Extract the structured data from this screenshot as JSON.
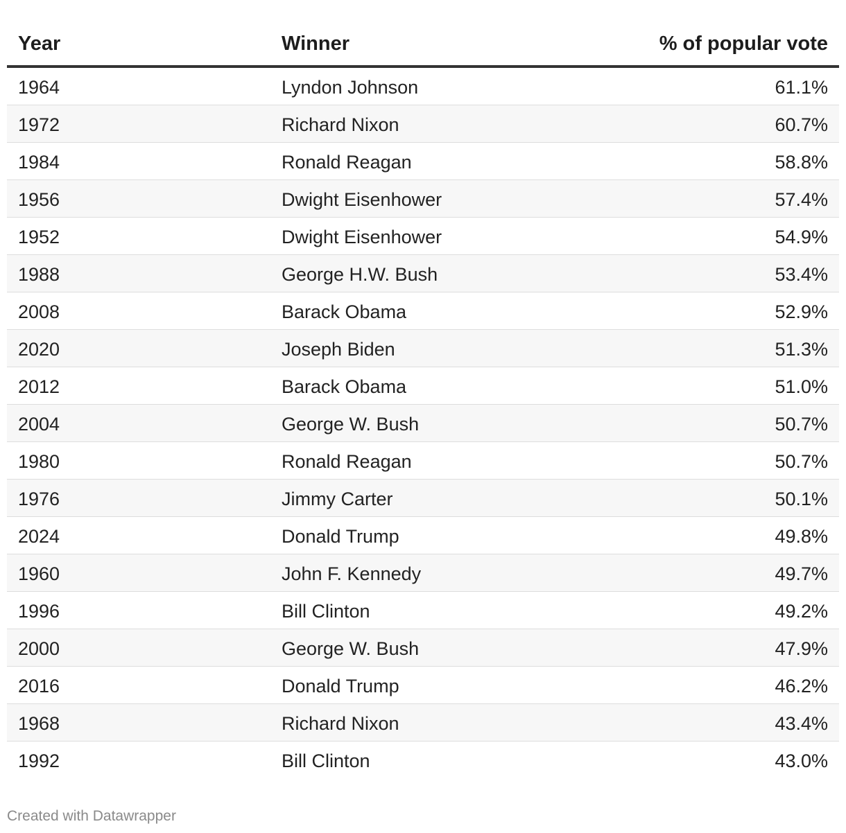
{
  "chart_data": {
    "type": "table",
    "columns": [
      "Year",
      "Winner",
      "% of popular vote"
    ],
    "rows": [
      {
        "year": "1964",
        "winner": "Lyndon Johnson",
        "pct": "61.1%"
      },
      {
        "year": "1972",
        "winner": "Richard Nixon",
        "pct": "60.7%"
      },
      {
        "year": "1984",
        "winner": "Ronald Reagan",
        "pct": "58.8%"
      },
      {
        "year": "1956",
        "winner": "Dwight Eisenhower",
        "pct": "57.4%"
      },
      {
        "year": "1952",
        "winner": "Dwight Eisenhower",
        "pct": "54.9%"
      },
      {
        "year": "1988",
        "winner": "George H.W. Bush",
        "pct": "53.4%"
      },
      {
        "year": "2008",
        "winner": "Barack Obama",
        "pct": "52.9%"
      },
      {
        "year": "2020",
        "winner": "Joseph Biden",
        "pct": "51.3%"
      },
      {
        "year": "2012",
        "winner": "Barack Obama",
        "pct": "51.0%"
      },
      {
        "year": "2004",
        "winner": "George W. Bush",
        "pct": "50.7%"
      },
      {
        "year": "1980",
        "winner": "Ronald Reagan",
        "pct": "50.7%"
      },
      {
        "year": "1976",
        "winner": "Jimmy Carter",
        "pct": "50.1%"
      },
      {
        "year": "2024",
        "winner": "Donald Trump",
        "pct": "49.8%"
      },
      {
        "year": "1960",
        "winner": "John F. Kennedy",
        "pct": "49.7%"
      },
      {
        "year": "1996",
        "winner": "Bill Clinton",
        "pct": "49.2%"
      },
      {
        "year": "2000",
        "winner": "George W. Bush",
        "pct": "47.9%"
      },
      {
        "year": "2016",
        "winner": "Donald Trump",
        "pct": "46.2%"
      },
      {
        "year": "1968",
        "winner": "Richard Nixon",
        "pct": "43.4%"
      },
      {
        "year": "1992",
        "winner": "Bill Clinton",
        "pct": "43.0%"
      }
    ]
  },
  "footer": {
    "credit": "Created with Datawrapper"
  },
  "colors": {
    "header_rule": "#333333",
    "row_divider": "#dddddd",
    "striped_row": "#f7f7f7",
    "credit_text": "#8a8a8a"
  }
}
